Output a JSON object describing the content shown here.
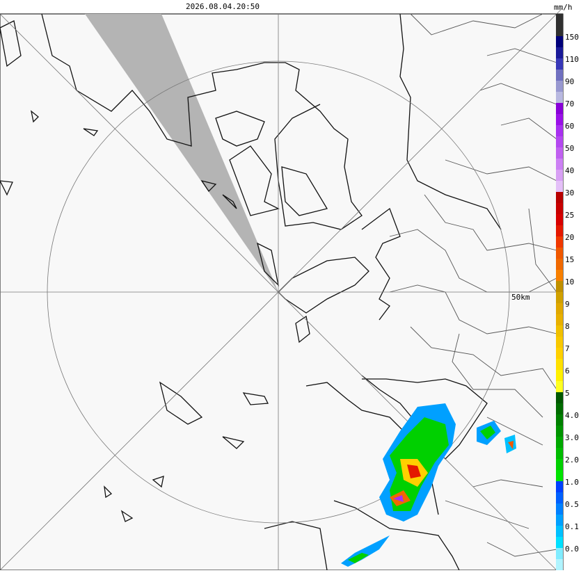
{
  "timestamp": "2026.08.04.20:50",
  "unit": "mm/h",
  "range_label": "50km",
  "legend": {
    "top_color": "#303030",
    "items": [
      {
        "label": "150",
        "colors": [
          "#00007a",
          "#1a1a99"
        ]
      },
      {
        "label": "110",
        "colors": [
          "#3838b8",
          "#7070c0"
        ]
      },
      {
        "label": "90",
        "colors": [
          "#9898d0",
          "#b8b8e0"
        ]
      },
      {
        "label": "70",
        "colors": [
          "#8800d8",
          "#9a10e8"
        ]
      },
      {
        "label": "60",
        "colors": [
          "#a830f0",
          "#b448f0"
        ]
      },
      {
        "label": "50",
        "colors": [
          "#c060f0",
          "#cc80f4"
        ]
      },
      {
        "label": "40",
        "colors": [
          "#d8a0f4",
          "#e4c0f8"
        ]
      },
      {
        "label": "30",
        "colors": [
          "#b80000",
          "#c80000"
        ]
      },
      {
        "label": "25",
        "colors": [
          "#d80000",
          "#e41800"
        ]
      },
      {
        "label": "20",
        "colors": [
          "#f03800",
          "#f05800"
        ]
      },
      {
        "label": "15",
        "colors": [
          "#f06800",
          "#f88000"
        ]
      },
      {
        "label": "10",
        "colors": [
          "#c09000",
          "#d0a000"
        ]
      },
      {
        "label": "9",
        "colors": [
          "#e0a800",
          "#e8b000"
        ]
      },
      {
        "label": "8",
        "colors": [
          "#f0c000",
          "#f8c800"
        ]
      },
      {
        "label": "7",
        "colors": [
          "#ffd000",
          "#ffe000"
        ]
      },
      {
        "label": "6",
        "colors": [
          "#fff000",
          "#ffff20"
        ]
      },
      {
        "label": "5",
        "colors": [
          "#005800",
          "#006c00"
        ]
      },
      {
        "label": "4.0",
        "colors": [
          "#008000",
          "#009400"
        ]
      },
      {
        "label": "3.0",
        "colors": [
          "#00a800",
          "#00bc00"
        ]
      },
      {
        "label": "2.0",
        "colors": [
          "#00d000",
          "#00e400"
        ]
      },
      {
        "label": "1.0",
        "colors": [
          "#0040ff",
          "#0060ff"
        ]
      },
      {
        "label": "0.5",
        "colors": [
          "#0080ff",
          "#00a0ff"
        ]
      },
      {
        "label": "0.1",
        "colors": [
          "#00c0ff",
          "#00e0ff"
        ]
      },
      {
        "label": "0.0",
        "colors": [
          "#80ecff",
          "#b0f4ff"
        ]
      }
    ]
  }
}
